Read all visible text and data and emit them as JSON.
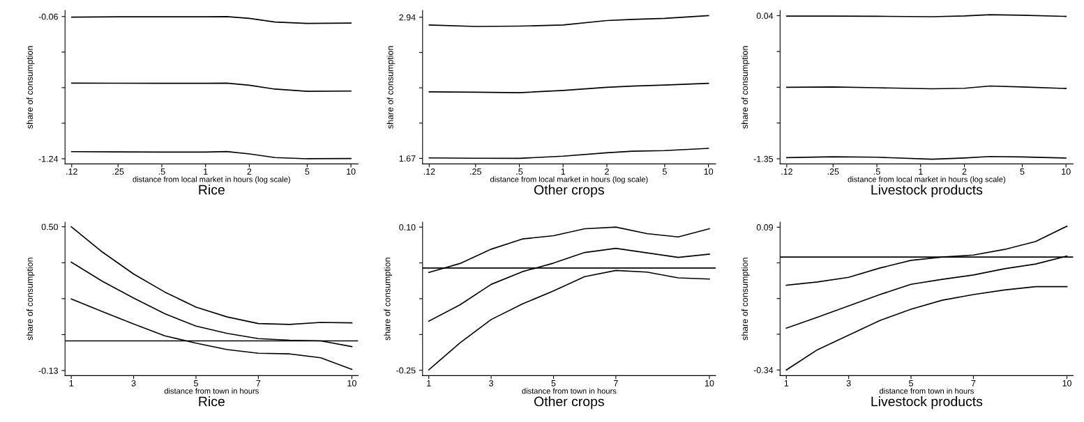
{
  "chart_data": [
    {
      "type": "line",
      "title": "Rice",
      "xlabel": "distance from local market in hours (log scale)",
      "ylabel": "share of consumption",
      "log": "x",
      "x": [
        0.12,
        0.25,
        0.5,
        1,
        1.4,
        2,
        3,
        5,
        10
      ],
      "xlim": [
        0.108,
        11.2
      ],
      "xticks": [
        {
          "value": 0.12,
          "label": ".12"
        },
        {
          "value": 0.25,
          "label": ".25"
        },
        {
          "value": 0.5,
          "label": ".5"
        },
        1,
        2,
        5,
        10
      ],
      "ylim": [
        -1.283,
        -0.01
      ],
      "yticks": [
        -1.24,
        {
          "value": -0.945,
          "label": null
        },
        {
          "value": -0.65,
          "label": null
        },
        {
          "value": -0.355,
          "label": null
        },
        -0.06
      ],
      "grid": false,
      "legend": false,
      "marker": "none",
      "line_style": "solid",
      "series": [
        {
          "color": "#000000",
          "values": [
            -0.065,
            -0.062,
            -0.062,
            -0.062,
            -0.06,
            -0.075,
            -0.105,
            -0.117,
            -0.114
          ]
        },
        {
          "color": "#000000",
          "values": [
            -0.612,
            -0.613,
            -0.614,
            -0.614,
            -0.612,
            -0.63,
            -0.662,
            -0.68,
            -0.678
          ]
        },
        {
          "color": "#000000",
          "values": [
            -1.181,
            -1.183,
            -1.185,
            -1.185,
            -1.18,
            -1.2,
            -1.23,
            -1.24,
            -1.238
          ]
        }
      ]
    },
    {
      "type": "line",
      "title": "Other crops",
      "xlabel": "distance from local market in hours (log scale)",
      "ylabel": "share of consumption",
      "log": "x",
      "x": [
        0.12,
        0.25,
        0.5,
        1,
        2,
        3,
        5,
        10
      ],
      "xlim": [
        0.108,
        11.2
      ],
      "xticks": [
        {
          "value": 0.12,
          "label": ".12"
        },
        {
          "value": 0.25,
          "label": ".25"
        },
        {
          "value": 0.5,
          "label": ".5"
        },
        1,
        2,
        5,
        10
      ],
      "ylim": [
        1.62,
        3.0
      ],
      "yticks": [
        1.67,
        {
          "value": 1.9875,
          "label": null
        },
        {
          "value": 2.305,
          "label": null
        },
        {
          "value": 2.6225,
          "label": null
        },
        2.94
      ],
      "grid": false,
      "legend": false,
      "marker": "none",
      "line_style": "solid",
      "series": [
        {
          "color": "#000000",
          "values": [
            2.87,
            2.857,
            2.86,
            2.87,
            2.91,
            2.92,
            2.93,
            2.954
          ]
        },
        {
          "color": "#000000",
          "values": [
            2.269,
            2.265,
            2.261,
            2.281,
            2.309,
            2.32,
            2.33,
            2.345
          ]
        },
        {
          "color": "#000000",
          "values": [
            1.674,
            1.671,
            1.67,
            1.69,
            1.72,
            1.735,
            1.74,
            1.76
          ]
        }
      ]
    },
    {
      "type": "line",
      "title": "Livestock products",
      "xlabel": "distance from local market in hours (log scale)",
      "ylabel": "share of consumption",
      "log": "x",
      "x": [
        0.12,
        0.25,
        0.5,
        1.2,
        2,
        3,
        5,
        10
      ],
      "xlim": [
        0.108,
        11.2
      ],
      "xticks": [
        {
          "value": 0.12,
          "label": ".12"
        },
        {
          "value": 0.25,
          "label": ".25"
        },
        {
          "value": 0.5,
          "label": ".5"
        },
        1,
        2,
        5,
        10
      ],
      "ylim": [
        -1.4,
        0.09
      ],
      "yticks": [
        -1.35,
        {
          "value": -1.0025,
          "label": null
        },
        {
          "value": -0.655,
          "label": null
        },
        {
          "value": -0.3075,
          "label": null
        },
        {
          "value": 0.04,
          "label": "0.04"
        }
      ],
      "grid": false,
      "legend": false,
      "marker": "none",
      "line_style": "solid",
      "series": [
        {
          "color": "#000000",
          "values": [
            0.036,
            0.036,
            0.034,
            0.03,
            0.038,
            0.05,
            0.045,
            0.033
          ]
        },
        {
          "color": "#000000",
          "values": [
            -0.656,
            -0.652,
            -0.66,
            -0.67,
            -0.665,
            -0.643,
            -0.652,
            -0.667
          ]
        },
        {
          "color": "#000000",
          "values": [
            -1.339,
            -1.33,
            -1.335,
            -1.354,
            -1.342,
            -1.328,
            -1.332,
            -1.343
          ]
        }
      ]
    },
    {
      "type": "line",
      "title": "Rice",
      "xlabel": "distance from town in hours",
      "ylabel": "share of consumption",
      "x": [
        1,
        2,
        3,
        4,
        5,
        6,
        7,
        8,
        9,
        10
      ],
      "xlim": [
        0.8,
        10.2
      ],
      "xticks": [
        1,
        3,
        5,
        7,
        10
      ],
      "ylim": [
        -0.152,
        0.52
      ],
      "yticks": [
        -0.13,
        {
          "value": 0.0275,
          "label": null
        },
        {
          "value": 0.185,
          "label": null
        },
        {
          "value": 0.3425,
          "label": null
        },
        {
          "value": 0.5,
          "label": "0.50"
        }
      ],
      "grid": false,
      "legend": false,
      "marker": "none",
      "line_style": "solid",
      "ref_lines": [
        {
          "axis": "y",
          "value": 0,
          "color": "#000000"
        }
      ],
      "series": [
        {
          "color": "#000000",
          "values": [
            0.5,
            0.389,
            0.293,
            0.214,
            0.148,
            0.105,
            0.076,
            0.072,
            0.081,
            0.079
          ]
        },
        {
          "color": "#000000",
          "values": [
            0.345,
            0.261,
            0.188,
            0.119,
            0.065,
            0.033,
            0.01,
            0.003,
            0.0,
            -0.025
          ]
        },
        {
          "color": "#000000",
          "values": [
            0.184,
            0.128,
            0.074,
            0.022,
            -0.01,
            -0.038,
            -0.054,
            -0.057,
            -0.074,
            -0.125
          ]
        }
      ]
    },
    {
      "type": "line",
      "title": "Other crops",
      "xlabel": "distance from town in hours",
      "ylabel": "share of consumption",
      "x": [
        1,
        2,
        3,
        4,
        5,
        6,
        7,
        8,
        9,
        10
      ],
      "xlim": [
        0.8,
        10.2
      ],
      "xticks": [
        1,
        3,
        5,
        7,
        10
      ],
      "ylim": [
        -0.263,
        0.112
      ],
      "yticks": [
        -0.25,
        {
          "value": -0.1625,
          "label": null
        },
        {
          "value": -0.075,
          "label": null
        },
        {
          "value": 0.0125,
          "label": null
        },
        {
          "value": 0.1,
          "label": "0.10"
        }
      ],
      "grid": false,
      "legend": false,
      "marker": "none",
      "line_style": "solid",
      "ref_lines": [
        {
          "axis": "y",
          "value": 0,
          "color": "#000000"
        }
      ],
      "series": [
        {
          "color": "#000000",
          "values": [
            -0.011,
            0.011,
            0.046,
            0.071,
            0.079,
            0.096,
            0.1,
            0.084,
            0.076,
            0.096
          ]
        },
        {
          "color": "#000000",
          "values": [
            -0.13,
            -0.09,
            -0.04,
            -0.009,
            0.012,
            0.038,
            0.048,
            0.037,
            0.026,
            0.034
          ]
        },
        {
          "color": "#000000",
          "values": [
            -0.249,
            -0.183,
            -0.126,
            -0.088,
            -0.056,
            -0.021,
            -0.006,
            -0.01,
            -0.024,
            -0.027
          ]
        }
      ]
    },
    {
      "type": "line",
      "title": "Livestock products",
      "xlabel": "distance from town in hours",
      "ylabel": "share of consumption",
      "x": [
        1,
        2,
        3,
        4,
        5,
        6,
        7,
        8,
        9,
        10
      ],
      "xlim": [
        0.8,
        10.2
      ],
      "xticks": [
        1,
        3,
        5,
        7,
        10
      ],
      "ylim": [
        -0.357,
        0.105
      ],
      "yticks": [
        -0.34,
        {
          "value": -0.2325,
          "label": null
        },
        {
          "value": -0.125,
          "label": null
        },
        {
          "value": -0.0175,
          "label": null
        },
        0.09
      ],
      "grid": false,
      "legend": false,
      "marker": "none",
      "line_style": "solid",
      "ref_lines": [
        {
          "axis": "y",
          "value": 0,
          "color": "#000000"
        }
      ],
      "series": [
        {
          "color": "#000000",
          "values": [
            -0.085,
            -0.075,
            -0.061,
            -0.033,
            -0.01,
            0.0,
            0.006,
            0.023,
            0.047,
            0.093
          ]
        },
        {
          "color": "#000000",
          "values": [
            -0.214,
            -0.181,
            -0.147,
            -0.113,
            -0.082,
            -0.067,
            -0.054,
            -0.035,
            -0.021,
            0.003
          ]
        },
        {
          "color": "#000000",
          "values": [
            -0.34,
            -0.279,
            -0.235,
            -0.191,
            -0.157,
            -0.13,
            -0.113,
            -0.099,
            -0.089,
            -0.089
          ]
        }
      ]
    }
  ]
}
